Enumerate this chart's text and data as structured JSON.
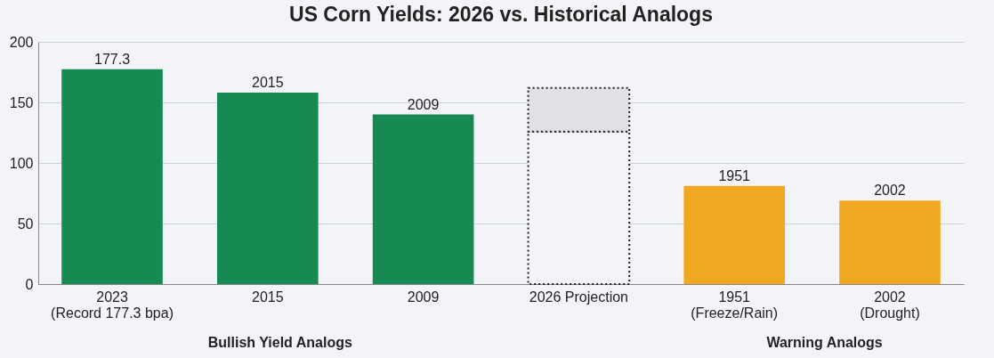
{
  "chart_data": {
    "type": "bar",
    "title": "US Corn Yields: 2026 vs. Historical Analogs",
    "categories": [
      "2023\n(Record 177.3 bpa)",
      "2015",
      "2009",
      "2026 Projection",
      "1951\n(Freeze/Rain)",
      "2002\n(Drought)"
    ],
    "stacked": true,
    "series": [
      {
        "values": [
          177.3,
          158,
          140,
          null,
          81,
          69
        ],
        "colors": [
          "#168a52",
          "#168a52",
          "#168a52",
          null,
          "#f0a823",
          "#f0a823"
        ]
      },
      {
        "values": [
          null,
          null,
          null,
          126,
          null,
          null
        ],
        "color": "#f2f4f8",
        "line_style": "dotted"
      },
      {
        "values": [
          null,
          null,
          null,
          36,
          null,
          null
        ],
        "color": "#dfe1e6",
        "line_style": "dotted"
      }
    ],
    "ylim": [
      0,
      200
    ],
    "yticks": [
      0,
      50,
      100,
      150,
      200
    ],
    "grid": "y",
    "annotations": [
      {
        "text": "177.3",
        "x": "2023\n(Record 177.3 bpa)",
        "y": 177.3
      },
      {
        "text": "2015",
        "x": "2015",
        "y": 158
      },
      {
        "text": "2009",
        "x": "2009",
        "y": 140
      },
      {
        "text": "1951",
        "x": "1951\n(Freeze/Rain)",
        "y": 81
      },
      {
        "text": "2002",
        "x": "2002\n(Drought)",
        "y": 69
      },
      "Bullish Yield Analogs",
      "Warning Analogs"
    ]
  }
}
